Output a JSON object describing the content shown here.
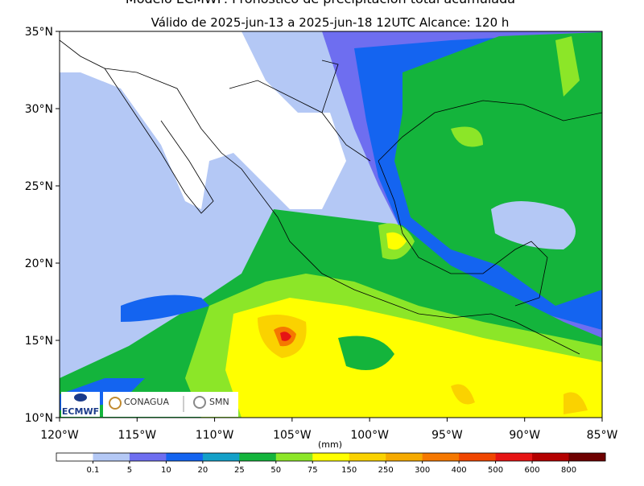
{
  "title": "Modelo ECMWF: Pronóstico de precipitación total acumulada",
  "subtitle": "Válido de 2025-jun-13 a 2025-jun-18 12UTC   Alcance: 120 h",
  "lon_ticks": [
    {
      "value": -120,
      "label": "120°W"
    },
    {
      "value": -115,
      "label": "115°W"
    },
    {
      "value": -110,
      "label": "110°W"
    },
    {
      "value": -105,
      "label": "105°W"
    },
    {
      "value": -100,
      "label": "100°W"
    },
    {
      "value": -95,
      "label": "95°W"
    },
    {
      "value": -90,
      "label": "90°W"
    },
    {
      "value": -85,
      "label": "85°W"
    }
  ],
  "lat_ticks": [
    {
      "value": 35,
      "label": "35°N"
    },
    {
      "value": 30,
      "label": "30°N"
    },
    {
      "value": 25,
      "label": "25°N"
    },
    {
      "value": 20,
      "label": "20°N"
    },
    {
      "value": 15,
      "label": "15°N"
    },
    {
      "value": 10,
      "label": "10°N"
    }
  ],
  "xlim": [
    -120,
    -85
  ],
  "ylim": [
    10,
    35
  ],
  "colorbar": {
    "unit": "(mm)",
    "levels": [
      0.1,
      5,
      10,
      20,
      25,
      50,
      75,
      150,
      250,
      300,
      400,
      500,
      600,
      800
    ],
    "colors": [
      "#ffffff",
      "#b4c8f5",
      "#6e6ef0",
      "#1464f0",
      "#14a0c8",
      "#14b43c",
      "#8ce628",
      "#ffff00",
      "#fad200",
      "#f5aa00",
      "#f57800",
      "#f04600",
      "#e61414",
      "#b40000",
      "#6e0000"
    ]
  },
  "logos": {
    "ecmwf": "ECMWF",
    "conagua": "CONAGUA",
    "smn": "SMN"
  }
}
